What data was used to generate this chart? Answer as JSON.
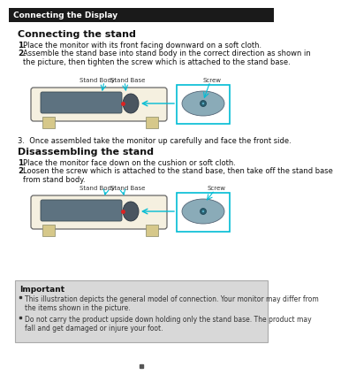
{
  "page_header": "Connecting the Display",
  "header_bg": "#1a1a1a",
  "header_text_color": "#ffffff",
  "bg_color": "#ffffff",
  "section1_title": "Connecting the stand",
  "section1_steps": [
    "Place the monitor with its front facing downward on a soft cloth.",
    "Assemble the stand base into stand body in the correct direction as shown in\nthe picture, then tighten the screw which is attached to the stand base."
  ],
  "step3_text": "3.  Once assembled take the monitor up carefully and face the front side.",
  "section2_title": "Disassembling the stand",
  "section2_steps": [
    "Place the monitor face down on the cushion or soft cloth.",
    "Loosen the screw which is attached to the stand base, then take off the stand base\nfrom stand body."
  ],
  "important_bg": "#d8d8d8",
  "important_title": "Important",
  "important_bullets": [
    "This illustration depicts the general model of connection. Your monitor may differ from\nthe items shown in the picture.",
    "Do not carry the product upside down holding only the stand base. The product may\nfall and get damaged or injure your foot."
  ],
  "label_stand_body": "Stand Body",
  "label_stand_base": "Stand Base",
  "label_screw": "Screw"
}
